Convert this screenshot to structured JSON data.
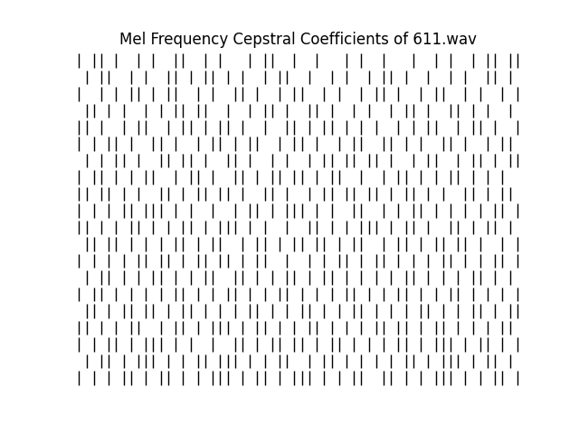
{
  "chart_data": {
    "type": "heatmap",
    "title": "Mel Frequency Cepstral Coefficients of 611.wav",
    "tick_labels": false,
    "color": "black",
    "cells": [
      [
        1,
        0,
        1,
        1,
        0,
        1,
        0,
        0,
        1,
        0,
        1,
        0,
        0,
        1,
        1,
        0,
        0,
        1,
        0,
        1,
        0,
        0,
        0,
        1,
        0,
        1,
        1,
        0,
        0,
        1,
        0,
        0,
        1,
        0,
        0,
        0,
        1,
        0,
        1,
        0,
        0,
        1,
        0,
        0,
        0,
        1,
        0,
        0,
        1,
        0,
        1,
        0,
        0,
        1,
        0,
        1,
        1,
        0,
        1,
        1
      ],
      [
        0,
        1,
        0,
        1,
        1,
        0,
        0,
        1,
        0,
        1,
        0,
        0,
        1,
        1,
        0,
        1,
        0,
        1,
        1,
        0,
        1,
        0,
        1,
        0,
        0,
        1,
        0,
        1,
        1,
        0,
        0,
        1,
        0,
        0,
        1,
        0,
        1,
        0,
        0,
        1,
        0,
        1,
        1,
        0,
        1,
        0,
        0,
        1,
        0,
        0,
        1,
        0,
        1,
        0,
        0,
        1,
        1,
        0,
        1,
        0
      ],
      [
        1,
        0,
        0,
        1,
        0,
        1,
        0,
        1,
        1,
        0,
        1,
        0,
        1,
        1,
        0,
        0,
        1,
        0,
        1,
        0,
        0,
        1,
        1,
        0,
        1,
        0,
        0,
        1,
        0,
        1,
        1,
        0,
        0,
        1,
        0,
        1,
        0,
        0,
        1,
        0,
        1,
        1,
        0,
        1,
        0,
        0,
        1,
        0,
        1,
        1,
        0,
        0,
        1,
        0,
        1,
        0,
        0,
        1,
        0,
        1
      ],
      [
        0,
        1,
        1,
        0,
        1,
        0,
        1,
        0,
        0,
        1,
        0,
        1,
        0,
        1,
        1,
        0,
        1,
        1,
        0,
        0,
        1,
        0,
        0,
        1,
        0,
        1,
        1,
        0,
        1,
        0,
        0,
        1,
        1,
        0,
        1,
        0,
        0,
        1,
        0,
        1,
        0,
        0,
        1,
        0,
        1,
        1,
        0,
        1,
        0,
        0,
        1,
        1,
        0,
        1,
        0,
        1,
        0,
        0,
        1,
        0
      ],
      [
        1,
        1,
        0,
        1,
        0,
        0,
        1,
        0,
        1,
        1,
        0,
        0,
        1,
        0,
        1,
        1,
        0,
        1,
        0,
        1,
        1,
        0,
        1,
        0,
        0,
        1,
        0,
        0,
        1,
        1,
        0,
        1,
        0,
        1,
        1,
        0,
        1,
        0,
        1,
        0,
        1,
        0,
        0,
        1,
        0,
        1,
        0,
        1,
        1,
        0,
        0,
        1,
        0,
        1,
        1,
        0,
        1,
        0,
        0,
        1
      ],
      [
        1,
        0,
        1,
        0,
        1,
        1,
        0,
        1,
        0,
        0,
        1,
        1,
        0,
        1,
        0,
        0,
        1,
        0,
        1,
        1,
        0,
        1,
        0,
        1,
        1,
        0,
        0,
        1,
        0,
        1,
        1,
        0,
        1,
        0,
        0,
        1,
        0,
        1,
        1,
        0,
        0,
        1,
        1,
        0,
        1,
        0,
        1,
        0,
        0,
        1,
        1,
        0,
        1,
        0,
        0,
        1,
        0,
        1,
        1,
        0
      ],
      [
        0,
        1,
        0,
        1,
        0,
        1,
        1,
        0,
        1,
        0,
        0,
        1,
        1,
        0,
        1,
        1,
        0,
        1,
        0,
        0,
        1,
        1,
        0,
        1,
        0,
        0,
        1,
        0,
        1,
        0,
        0,
        1,
        0,
        1,
        1,
        0,
        1,
        1,
        0,
        1,
        1,
        0,
        1,
        0,
        0,
        1,
        0,
        1,
        1,
        0,
        0,
        1,
        0,
        1,
        1,
        0,
        1,
        0,
        1,
        1
      ],
      [
        1,
        0,
        1,
        1,
        0,
        1,
        0,
        1,
        0,
        1,
        1,
        0,
        0,
        1,
        0,
        1,
        1,
        0,
        1,
        0,
        0,
        1,
        1,
        0,
        1,
        0,
        1,
        1,
        0,
        1,
        1,
        0,
        1,
        0,
        1,
        1,
        0,
        0,
        1,
        0,
        0,
        1,
        0,
        1,
        1,
        0,
        1,
        0,
        1,
        0,
        1,
        1,
        0,
        1,
        0,
        1,
        0,
        1,
        0,
        0
      ],
      [
        1,
        1,
        0,
        1,
        1,
        0,
        1,
        0,
        1,
        0,
        0,
        1,
        1,
        0,
        1,
        0,
        1,
        1,
        0,
        1,
        1,
        0,
        1,
        0,
        0,
        1,
        1,
        0,
        1,
        0,
        0,
        1,
        0,
        1,
        1,
        0,
        1,
        1,
        0,
        1,
        1,
        0,
        1,
        0,
        1,
        1,
        0,
        1,
        0,
        1,
        0,
        0,
        1,
        1,
        0,
        1,
        0,
        1,
        1,
        0
      ],
      [
        1,
        0,
        1,
        0,
        1,
        0,
        1,
        1,
        0,
        1,
        1,
        1,
        0,
        1,
        0,
        1,
        0,
        0,
        1,
        0,
        0,
        1,
        0,
        1,
        1,
        0,
        1,
        0,
        1,
        1,
        1,
        0,
        1,
        0,
        1,
        0,
        0,
        1,
        1,
        0,
        0,
        1,
        0,
        1,
        0,
        1,
        1,
        0,
        1,
        0,
        1,
        0,
        1,
        0,
        1,
        0,
        1,
        1,
        0,
        1
      ],
      [
        1,
        1,
        0,
        1,
        0,
        1,
        0,
        1,
        1,
        0,
        1,
        0,
        1,
        0,
        1,
        1,
        0,
        1,
        0,
        1,
        1,
        1,
        0,
        1,
        0,
        1,
        0,
        0,
        1,
        0,
        0,
        1,
        1,
        0,
        1,
        0,
        1,
        0,
        1,
        1,
        1,
        0,
        1,
        0,
        1,
        1,
        0,
        1,
        0,
        0,
        1,
        1,
        0,
        1,
        0,
        1,
        1,
        0,
        1,
        0
      ],
      [
        0,
        1,
        1,
        0,
        1,
        1,
        0,
        1,
        0,
        1,
        0,
        1,
        0,
        1,
        1,
        0,
        1,
        0,
        1,
        1,
        0,
        0,
        1,
        0,
        1,
        1,
        0,
        1,
        0,
        1,
        1,
        0,
        1,
        1,
        0,
        1,
        0,
        1,
        1,
        0,
        0,
        1,
        0,
        1,
        1,
        0,
        1,
        0,
        1,
        1,
        0,
        1,
        1,
        0,
        1,
        0,
        0,
        1,
        0,
        1
      ],
      [
        1,
        0,
        1,
        0,
        1,
        0,
        1,
        0,
        1,
        1,
        0,
        1,
        1,
        0,
        1,
        0,
        1,
        1,
        0,
        1,
        1,
        0,
        1,
        0,
        1,
        1,
        0,
        0,
        1,
        0,
        0,
        1,
        0,
        1,
        0,
        1,
        1,
        0,
        1,
        0,
        1,
        1,
        0,
        1,
        0,
        1,
        0,
        1,
        0,
        1,
        1,
        0,
        1,
        0,
        1,
        0,
        1,
        1,
        0,
        1
      ],
      [
        0,
        1,
        0,
        1,
        1,
        0,
        1,
        0,
        1,
        0,
        1,
        1,
        0,
        1,
        0,
        1,
        0,
        1,
        1,
        0,
        0,
        1,
        1,
        0,
        1,
        0,
        1,
        0,
        1,
        1,
        0,
        1,
        0,
        1,
        1,
        0,
        1,
        0,
        1,
        0,
        1,
        0,
        1,
        0,
        1,
        1,
        0,
        1,
        0,
        1,
        0,
        1,
        0,
        1,
        1,
        0,
        1,
        0,
        1,
        0
      ],
      [
        1,
        0,
        1,
        1,
        0,
        1,
        0,
        1,
        0,
        1,
        0,
        1,
        0,
        1,
        1,
        0,
        1,
        0,
        1,
        0,
        1,
        1,
        0,
        1,
        0,
        1,
        0,
        1,
        1,
        0,
        1,
        0,
        1,
        0,
        1,
        0,
        1,
        1,
        0,
        1,
        0,
        1,
        0,
        1,
        1,
        0,
        1,
        0,
        1,
        0,
        1,
        1,
        0,
        1,
        0,
        1,
        0,
        1,
        0,
        1
      ],
      [
        0,
        1,
        1,
        0,
        1,
        0,
        1,
        1,
        0,
        1,
        1,
        0,
        1,
        0,
        1,
        1,
        0,
        1,
        0,
        1,
        0,
        1,
        0,
        1,
        1,
        0,
        1,
        0,
        1,
        0,
        1,
        1,
        0,
        1,
        0,
        1,
        0,
        1,
        1,
        0,
        1,
        0,
        1,
        0,
        1,
        0,
        1,
        1,
        0,
        1,
        0,
        1,
        0,
        1,
        1,
        0,
        1,
        0,
        1,
        1
      ],
      [
        1,
        1,
        0,
        1,
        0,
        1,
        0,
        1,
        1,
        0,
        0,
        1,
        0,
        1,
        1,
        0,
        1,
        0,
        1,
        1,
        1,
        0,
        1,
        0,
        1,
        1,
        0,
        1,
        0,
        1,
        0,
        1,
        1,
        0,
        1,
        0,
        1,
        0,
        1,
        0,
        1,
        1,
        0,
        1,
        1,
        0,
        1,
        0,
        1,
        1,
        0,
        1,
        0,
        1,
        0,
        1,
        0,
        1,
        1,
        0
      ],
      [
        1,
        0,
        1,
        0,
        1,
        1,
        0,
        1,
        0,
        1,
        1,
        1,
        0,
        1,
        0,
        1,
        0,
        0,
        1,
        0,
        0,
        1,
        1,
        0,
        1,
        0,
        1,
        1,
        0,
        1,
        1,
        0,
        1,
        0,
        1,
        1,
        0,
        1,
        0,
        1,
        0,
        1,
        0,
        1,
        1,
        0,
        1,
        0,
        1,
        1,
        1,
        0,
        1,
        0,
        1,
        1,
        0,
        1,
        0,
        1
      ],
      [
        0,
        1,
        0,
        1,
        1,
        0,
        1,
        0,
        1,
        1,
        1,
        0,
        1,
        0,
        1,
        0,
        1,
        1,
        0,
        1,
        1,
        1,
        0,
        1,
        0,
        1,
        0,
        1,
        1,
        0,
        0,
        1,
        0,
        1,
        1,
        0,
        1,
        0,
        1,
        0,
        1,
        0,
        1,
        0,
        1,
        1,
        0,
        1,
        0,
        1,
        1,
        1,
        0,
        1,
        0,
        1,
        1,
        0,
        1,
        0
      ],
      [
        1,
        0,
        1,
        0,
        1,
        0,
        1,
        1,
        0,
        1,
        0,
        1,
        1,
        0,
        1,
        0,
        1,
        0,
        1,
        1,
        1,
        0,
        1,
        0,
        1,
        1,
        0,
        1,
        0,
        1,
        1,
        1,
        0,
        1,
        0,
        1,
        0,
        1,
        1,
        0,
        0,
        1,
        1,
        0,
        1,
        0,
        1,
        0,
        1,
        1,
        1,
        0,
        1,
        0,
        1,
        0,
        1,
        1,
        0,
        1
      ]
    ]
  }
}
